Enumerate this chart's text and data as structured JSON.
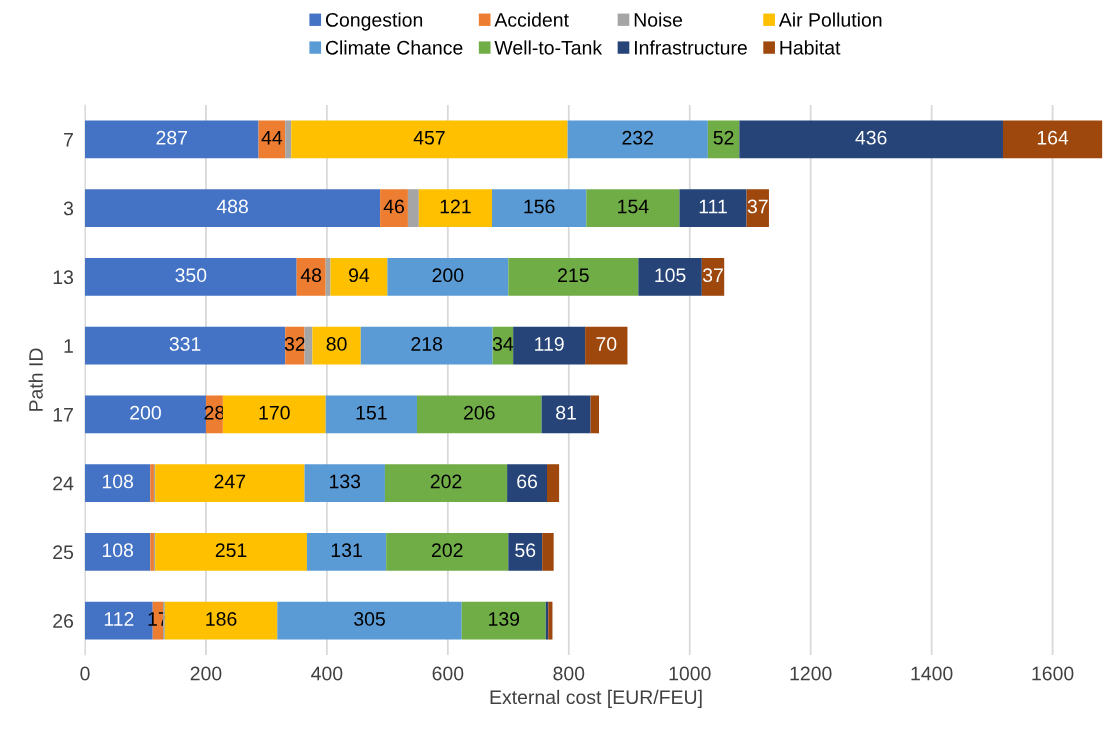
{
  "chart_data": {
    "type": "bar",
    "orientation": "horizontal",
    "stacked": true,
    "xlabel": "External cost [EUR/FEU]",
    "ylabel": "Path ID",
    "categories": [
      "7",
      "3",
      "13",
      "1",
      "17",
      "24",
      "25",
      "26"
    ],
    "xlim": [
      0,
      1690
    ],
    "xticks": [
      0,
      200,
      400,
      600,
      800,
      1000,
      1200,
      1400,
      1600
    ],
    "grid": "x",
    "legend": "top",
    "series": [
      {
        "name": "Congestion",
        "color": "#4472c4",
        "values": [
          287,
          488,
          350,
          331,
          200,
          108,
          108,
          112
        ],
        "value_labels": [
          "287",
          "488",
          "350",
          "331",
          "200",
          "108",
          "108",
          "112"
        ]
      },
      {
        "name": "Accident",
        "color": "#ed7d31",
        "values": [
          44,
          46,
          48,
          32,
          28,
          6,
          6,
          17
        ],
        "value_labels": [
          "44",
          "46",
          "48",
          "32",
          "28",
          null,
          null,
          "17"
        ]
      },
      {
        "name": "Noise",
        "color": "#a5a5a5",
        "values": [
          10,
          18,
          8,
          13,
          0,
          2,
          2,
          3
        ],
        "value_labels": [
          null,
          null,
          null,
          null,
          null,
          null,
          null,
          null
        ]
      },
      {
        "name": "Air Pollution",
        "color": "#ffc000",
        "values": [
          457,
          121,
          94,
          80,
          170,
          247,
          251,
          186
        ],
        "value_labels": [
          "457",
          "121",
          "94",
          "80",
          "170",
          "247",
          "251",
          "186"
        ]
      },
      {
        "name": "Climate Chance",
        "color": "#5b9bd5",
        "values": [
          232,
          156,
          200,
          218,
          151,
          133,
          131,
          305
        ],
        "value_labels": [
          "232",
          "156",
          "200",
          "218",
          "151",
          "133",
          "131",
          "305"
        ]
      },
      {
        "name": "Well-to-Tank",
        "color": "#70ad47",
        "values": [
          52,
          154,
          215,
          34,
          206,
          202,
          202,
          139
        ],
        "value_labels": [
          "52",
          "154",
          "215",
          "34",
          "206",
          "202",
          "202",
          "139"
        ]
      },
      {
        "name": "Infrastructure",
        "color": "#264478",
        "values": [
          436,
          111,
          105,
          119,
          81,
          66,
          56,
          4
        ],
        "value_labels": [
          "436",
          "111",
          "105",
          "119",
          "81",
          "66",
          "56",
          null
        ]
      },
      {
        "name": "Habitat",
        "color": "#9e480e",
        "values": [
          164,
          37,
          37,
          70,
          14,
          20,
          19,
          7
        ],
        "value_labels": [
          "164",
          "37",
          "37",
          "70",
          null,
          null,
          null,
          null
        ]
      }
    ]
  }
}
